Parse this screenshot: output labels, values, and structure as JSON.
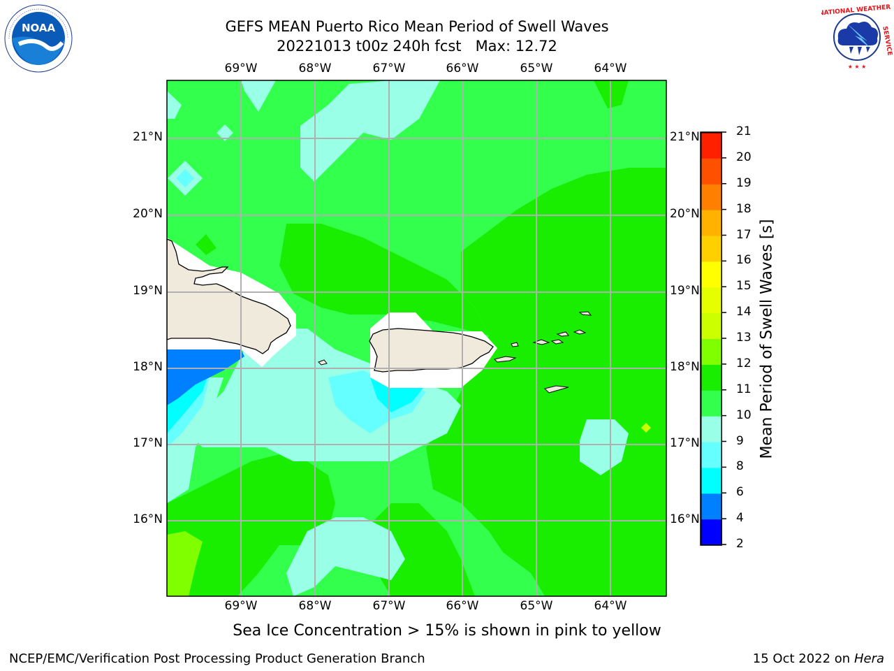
{
  "title": {
    "line1": "GEFS MEAN Puerto Rico Mean Period of Swell Waves",
    "line2": "20221013 t00z 240h fcst   Max: 12.72"
  },
  "logos": {
    "left": {
      "name": "noaa-logo",
      "text": "NOAA"
    },
    "right": {
      "name": "nws-logo",
      "text": "NATIONAL WEATHER SERVICE"
    }
  },
  "map": {
    "lon_labels": [
      "69°W",
      "68°W",
      "67°W",
      "66°W",
      "65°W",
      "64°W"
    ],
    "lat_labels": [
      "21°N",
      "20°N",
      "19°N",
      "18°N",
      "17°N",
      "16°N"
    ],
    "base_color": "#33ff4d",
    "land_color": "#efeadc",
    "colors": {
      "level_4_6": "#0080ff",
      "level_6_8": "#00ffff",
      "level_8_9": "#66ffff",
      "level_9_10": "#99ffe6",
      "level_10_11": "#33ff4d",
      "level_11_12": "#1aee00",
      "level_12_13": "#80ff00"
    }
  },
  "colorbar": {
    "label": "Mean Period of Swell Waves [s]",
    "ticks": [
      "2",
      "4",
      "6",
      "8",
      "9",
      "10",
      "11",
      "12",
      "13",
      "14",
      "15",
      "16",
      "17",
      "18",
      "19",
      "20",
      "21"
    ],
    "colors": [
      "#0000ff",
      "#0080ff",
      "#00ffff",
      "#66ffff",
      "#99ffe6",
      "#33ff4d",
      "#1aee00",
      "#80ff00",
      "#ccff00",
      "#e6ff00",
      "#ffff00",
      "#ffd000",
      "#ffb300",
      "#ff8000",
      "#ff5000",
      "#ff2000",
      "#ff0000"
    ]
  },
  "caption": "Sea Ice Concentration > 15% is shown in pink to yellow",
  "footer": {
    "left": "NCEP/EMC/Verification Post Processing Product Generation Branch",
    "right_date": "15 Oct 2022 on ",
    "right_host": "Hera"
  }
}
